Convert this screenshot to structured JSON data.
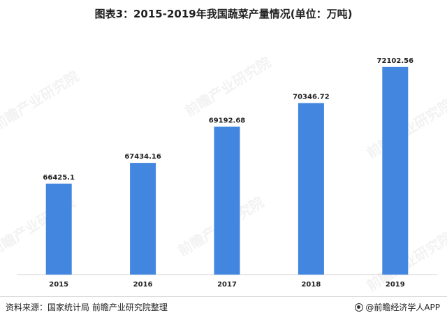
{
  "chart_data": {
    "type": "bar",
    "title": "图表3：2015-2019年我国蔬菜产量情况(单位：万吨)",
    "categories": [
      "2015",
      "2016",
      "2017",
      "2018",
      "2019"
    ],
    "values": [
      66425.1,
      67434.16,
      69192.68,
      70346.72,
      72102.56
    ],
    "value_labels": [
      "66425.1",
      "67434.16",
      "69192.68",
      "70346.72",
      "72102.56"
    ],
    "ylim": [
      62000,
      74000
    ],
    "bar_color": "#4286e0",
    "grid": false,
    "legend": "none",
    "xlabel": "",
    "ylabel": ""
  },
  "footer": {
    "source": "资料来源：国家统计局 前瞻产业研究院整理",
    "brand": "@前瞻经济学人APP"
  },
  "watermark": {
    "text": "前瞻产业研究院"
  }
}
